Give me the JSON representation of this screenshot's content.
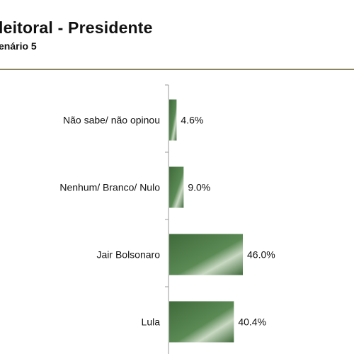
{
  "header": {
    "title": "leitoral - Presidente",
    "subtitle": "enário 5"
  },
  "colors": {
    "bar_dark": "#3f6a3a",
    "bar_mid": "#5b8a55",
    "bar_light": "#c9d9c3",
    "axis": "#9a9a9a",
    "rule": "#8a8460"
  },
  "chart_data": {
    "type": "bar",
    "orientation": "horizontal",
    "title": "",
    "xlabel": "",
    "ylabel": "",
    "categories": [
      "Não sabe/ não opinou",
      "Nenhum/ Branco/ Nulo",
      "Jair Bolsonaro",
      "Lula"
    ],
    "values": [
      4.6,
      9.0,
      46.0,
      40.4
    ],
    "value_labels": [
      "4.6%",
      "9.0%",
      "46.0%",
      "40.4%"
    ],
    "unit": "%",
    "xlim": [
      0,
      100
    ],
    "grid": false,
    "legend": "none"
  }
}
